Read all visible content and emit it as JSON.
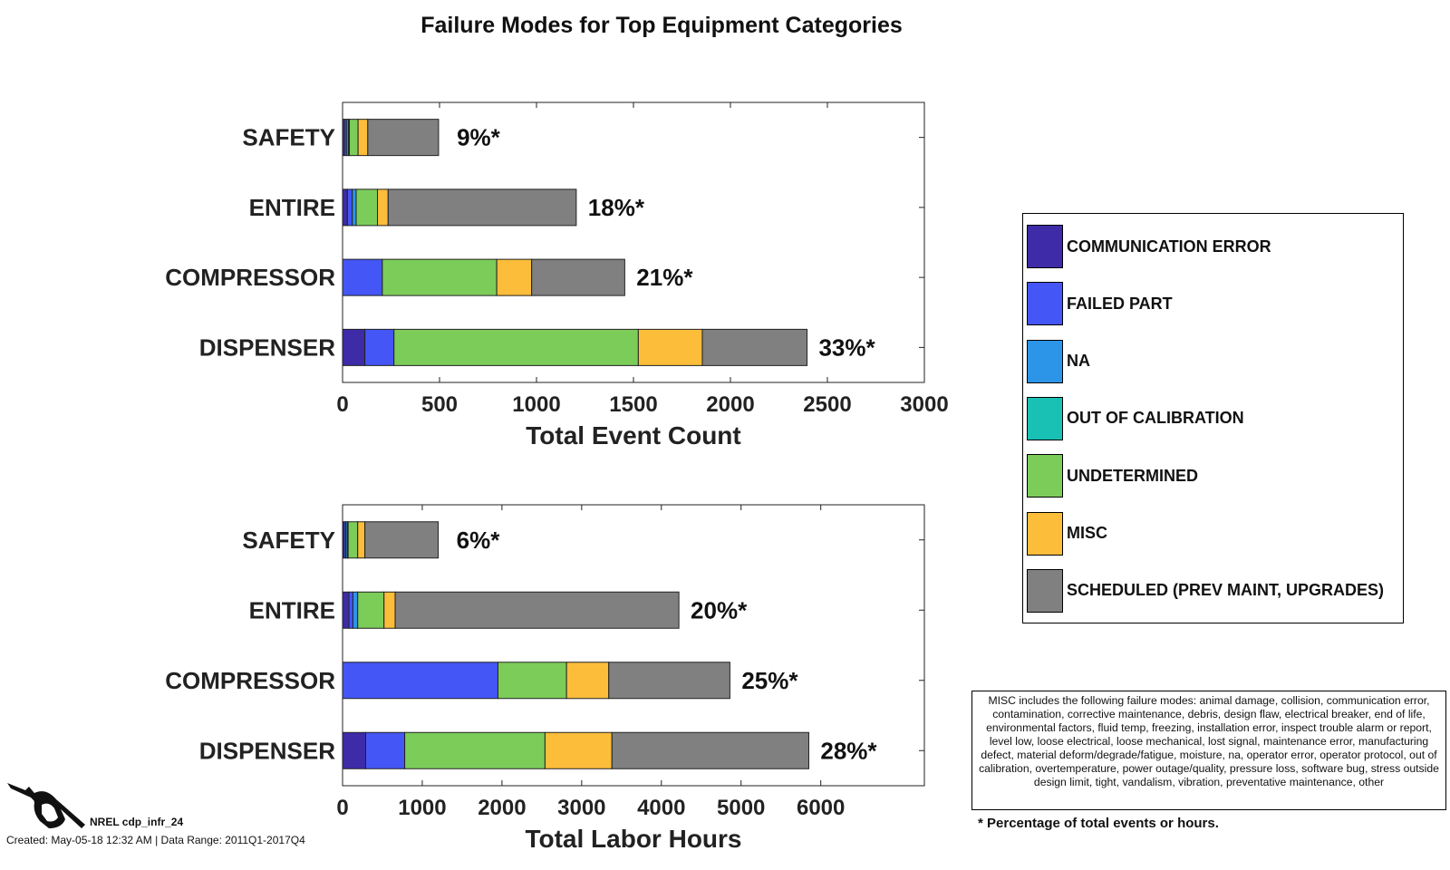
{
  "title": "Failure Modes for Top Equipment Categories",
  "colors": {
    "COMMUNICATION ERROR": "#3d2ba8",
    "FAILED PART": "#4456f5",
    "NA": "#2c95e8",
    "OUT OF CALIBRATION": "#19c1b5",
    "UNDETERMINED": "#7ccc5a",
    "MISC": "#fbbd3a",
    "SCHEDULED (PREV MAINT, UPGRADES)": "#808080"
  },
  "chart_data": [
    {
      "type": "bar",
      "orientation": "horizontal",
      "stacked": true,
      "title": "",
      "xlabel": "Total Event Count",
      "ylabel": "",
      "xlim": [
        0,
        3000
      ],
      "xticks": [
        0,
        500,
        1000,
        1500,
        2000,
        2500,
        3000
      ],
      "categories": [
        "SAFETY",
        "ENTIRE",
        "COMPRESSOR",
        "DISPENSER"
      ],
      "percent_labels": [
        "9%*",
        "18%*",
        "21%*",
        "33%*"
      ],
      "series": [
        {
          "name": "COMMUNICATION ERROR",
          "values": [
            10,
            25,
            0,
            115
          ]
        },
        {
          "name": "FAILED PART",
          "values": [
            10,
            25,
            205,
            150
          ]
        },
        {
          "name": "NA",
          "values": [
            10,
            20,
            0,
            0
          ]
        },
        {
          "name": "OUT OF CALIBRATION",
          "values": [
            5,
            0,
            0,
            0
          ]
        },
        {
          "name": "UNDETERMINED",
          "values": [
            45,
            110,
            590,
            1260
          ]
        },
        {
          "name": "MISC",
          "values": [
            50,
            55,
            180,
            330
          ]
        },
        {
          "name": "SCHEDULED (PREV MAINT, UPGRADES)",
          "values": [
            365,
            970,
            480,
            540
          ]
        }
      ]
    },
    {
      "type": "bar",
      "orientation": "horizontal",
      "stacked": true,
      "title": "",
      "xlabel": "Total Labor Hours",
      "ylabel": "",
      "xlim": [
        0,
        7300
      ],
      "xticks": [
        0,
        1000,
        2000,
        3000,
        4000,
        5000,
        6000
      ],
      "categories": [
        "SAFETY",
        "ENTIRE",
        "COMPRESSOR",
        "DISPENSER"
      ],
      "percent_labels": [
        "6%*",
        "20%*",
        "25%*",
        "28%*"
      ],
      "series": [
        {
          "name": "COMMUNICATION ERROR",
          "values": [
            20,
            80,
            0,
            290
          ]
        },
        {
          "name": "FAILED PART",
          "values": [
            20,
            50,
            1950,
            490
          ]
        },
        {
          "name": "NA",
          "values": [
            20,
            60,
            0,
            0
          ]
        },
        {
          "name": "OUT OF CALIBRATION",
          "values": [
            10,
            0,
            0,
            0
          ]
        },
        {
          "name": "UNDETERMINED",
          "values": [
            120,
            330,
            860,
            1760
          ]
        },
        {
          "name": "MISC",
          "values": [
            90,
            140,
            530,
            840
          ]
        },
        {
          "name": "SCHEDULED (PREV MAINT, UPGRADES)",
          "values": [
            920,
            3560,
            1520,
            2470
          ]
        }
      ]
    }
  ],
  "legend": {
    "items": [
      "COMMUNICATION ERROR",
      "FAILED PART",
      "NA",
      "OUT OF CALIBRATION",
      "UNDETERMINED",
      "MISC",
      "SCHEDULED (PREV MAINT, UPGRADES)"
    ]
  },
  "misc_note": "MISC includes the following failure modes: animal damage, collision, communication error, contamination, corrective maintenance, debris, design flaw, electrical breaker, end of life, environmental factors, fluid temp, freezing, installation error, inspect trouble alarm or report, level low, loose electrical, loose mechanical, lost signal, maintenance error, manufacturing defect, material deform/degrade/fatigue, moisture, na, operator error, operator protocol, out of calibration, overtemperature, power outage/quality, pressure loss, software bug, stress outside design limit, tight, vandalism, vibration, preventative maintenance, other",
  "footnote": "* Percentage of total events or hours.",
  "logo_text": "NREL cdp_infr_24",
  "created_text": "Created: May-05-18 12:32 AM | Data Range: 2011Q1-2017Q4"
}
